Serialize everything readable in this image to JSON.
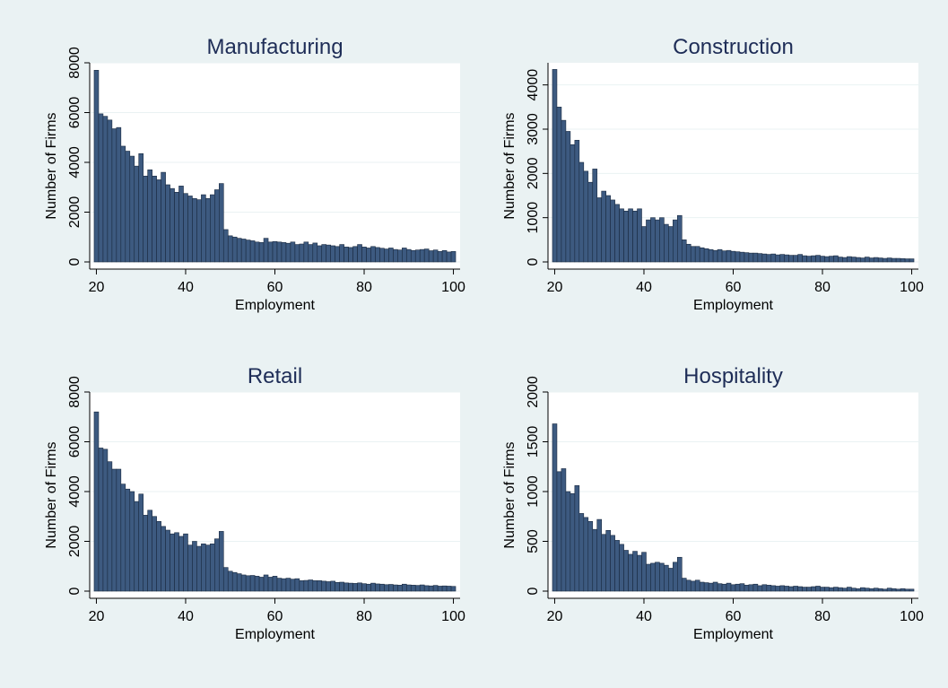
{
  "colors": {
    "background": "#eaf2f3",
    "plot_area": "#ffffff",
    "bar_fill": "#3d5a80",
    "bar_edge": "#1a2a40",
    "title": "#1e2d57"
  },
  "chart_data": [
    {
      "type": "bar",
      "title": "Manufacturing",
      "xlabel": "Employment",
      "ylabel": "Number of Firms",
      "xlim": [
        18.5,
        101.5
      ],
      "ylim": [
        0,
        8000
      ],
      "xticks": [
        20,
        40,
        60,
        80,
        100
      ],
      "yticks": [
        0,
        2000,
        4000,
        6000,
        8000
      ],
      "grid": true,
      "x": [
        20,
        21,
        22,
        23,
        24,
        25,
        26,
        27,
        28,
        29,
        30,
        31,
        32,
        33,
        34,
        35,
        36,
        37,
        38,
        39,
        40,
        41,
        42,
        43,
        44,
        45,
        46,
        47,
        48,
        49,
        50,
        51,
        52,
        53,
        54,
        55,
        56,
        57,
        58,
        59,
        60,
        61,
        62,
        63,
        64,
        65,
        66,
        67,
        68,
        69,
        70,
        71,
        72,
        73,
        74,
        75,
        76,
        77,
        78,
        79,
        80,
        81,
        82,
        83,
        84,
        85,
        86,
        87,
        88,
        89,
        90,
        91,
        92,
        93,
        94,
        95,
        96,
        97,
        98,
        99,
        100
      ],
      "values": [
        7700,
        5950,
        5850,
        5700,
        5350,
        5400,
        4650,
        4450,
        4250,
        3850,
        4350,
        3450,
        3700,
        3450,
        3300,
        3600,
        3100,
        2950,
        2800,
        3050,
        2750,
        2650,
        2550,
        2500,
        2700,
        2550,
        2700,
        2900,
        3150,
        1300,
        1050,
        1000,
        950,
        920,
        880,
        850,
        800,
        780,
        950,
        800,
        820,
        800,
        780,
        750,
        800,
        700,
        720,
        800,
        700,
        760,
        650,
        700,
        680,
        650,
        620,
        700,
        600,
        580,
        620,
        700,
        600,
        560,
        620,
        580,
        550,
        520,
        560,
        500,
        480,
        560,
        500,
        460,
        480,
        500,
        520,
        450,
        480,
        420,
        460,
        400,
        420
      ]
    },
    {
      "type": "bar",
      "title": "Construction",
      "xlabel": "Employment",
      "ylabel": "Number of Firms",
      "xlim": [
        18.5,
        101.5
      ],
      "ylim": [
        0,
        4500
      ],
      "xticks": [
        20,
        40,
        60,
        80,
        100
      ],
      "yticks": [
        0,
        1000,
        2000,
        3000,
        4000
      ],
      "grid": true,
      "x": [
        20,
        21,
        22,
        23,
        24,
        25,
        26,
        27,
        28,
        29,
        30,
        31,
        32,
        33,
        34,
        35,
        36,
        37,
        38,
        39,
        40,
        41,
        42,
        43,
        44,
        45,
        46,
        47,
        48,
        49,
        50,
        51,
        52,
        53,
        54,
        55,
        56,
        57,
        58,
        59,
        60,
        61,
        62,
        63,
        64,
        65,
        66,
        67,
        68,
        69,
        70,
        71,
        72,
        73,
        74,
        75,
        76,
        77,
        78,
        79,
        80,
        81,
        82,
        83,
        84,
        85,
        86,
        87,
        88,
        89,
        90,
        91,
        92,
        93,
        94,
        95,
        96,
        97,
        98,
        99,
        100
      ],
      "values": [
        4350,
        3500,
        3200,
        2950,
        2650,
        2750,
        2250,
        2050,
        1800,
        2100,
        1450,
        1600,
        1500,
        1400,
        1300,
        1200,
        1150,
        1200,
        1150,
        1200,
        800,
        950,
        1000,
        950,
        1000,
        850,
        800,
        950,
        1050,
        500,
        400,
        350,
        350,
        320,
        300,
        280,
        260,
        280,
        250,
        260,
        240,
        230,
        220,
        210,
        200,
        200,
        190,
        180,
        170,
        180,
        160,
        170,
        160,
        150,
        150,
        170,
        140,
        130,
        140,
        150,
        130,
        120,
        130,
        140,
        110,
        100,
        120,
        110,
        100,
        90,
        110,
        90,
        100,
        90,
        80,
        90,
        80,
        80,
        75,
        70,
        70
      ]
    },
    {
      "type": "bar",
      "title": "Retail",
      "xlabel": "Employment",
      "ylabel": "Number of Firms",
      "xlim": [
        18.5,
        101.5
      ],
      "ylim": [
        0,
        8000
      ],
      "xticks": [
        20,
        40,
        60,
        80,
        100
      ],
      "yticks": [
        0,
        2000,
        4000,
        6000,
        8000
      ],
      "grid": true,
      "x": [
        20,
        21,
        22,
        23,
        24,
        25,
        26,
        27,
        28,
        29,
        30,
        31,
        32,
        33,
        34,
        35,
        36,
        37,
        38,
        39,
        40,
        41,
        42,
        43,
        44,
        45,
        46,
        47,
        48,
        49,
        50,
        51,
        52,
        53,
        54,
        55,
        56,
        57,
        58,
        59,
        60,
        61,
        62,
        63,
        64,
        65,
        66,
        67,
        68,
        69,
        70,
        71,
        72,
        73,
        74,
        75,
        76,
        77,
        78,
        79,
        80,
        81,
        82,
        83,
        84,
        85,
        86,
        87,
        88,
        89,
        90,
        91,
        92,
        93,
        94,
        95,
        96,
        97,
        98,
        99,
        100
      ],
      "values": [
        7200,
        5750,
        5700,
        5200,
        4900,
        4900,
        4300,
        4100,
        4000,
        3600,
        3900,
        3050,
        3250,
        3000,
        2800,
        2600,
        2450,
        2300,
        2350,
        2200,
        2300,
        1850,
        2000,
        1800,
        1900,
        1850,
        1900,
        2100,
        2400,
        950,
        800,
        750,
        700,
        650,
        620,
        630,
        600,
        560,
        650,
        560,
        600,
        520,
        500,
        520,
        480,
        500,
        420,
        430,
        450,
        420,
        420,
        400,
        380,
        400,
        350,
        360,
        330,
        320,
        310,
        330,
        300,
        280,
        320,
        290,
        280,
        260,
        270,
        250,
        240,
        280,
        250,
        240,
        230,
        250,
        220,
        210,
        230,
        200,
        210,
        200,
        190
      ]
    },
    {
      "type": "bar",
      "title": "Hospitality",
      "xlabel": "Employment",
      "ylabel": "Number of Firms",
      "xlim": [
        18.5,
        101.5
      ],
      "ylim": [
        0,
        2000
      ],
      "xticks": [
        20,
        40,
        60,
        80,
        100
      ],
      "yticks": [
        0,
        500,
        1000,
        1500,
        2000
      ],
      "grid": true,
      "x": [
        20,
        21,
        22,
        23,
        24,
        25,
        26,
        27,
        28,
        29,
        30,
        31,
        32,
        33,
        34,
        35,
        36,
        37,
        38,
        39,
        40,
        41,
        42,
        43,
        44,
        45,
        46,
        47,
        48,
        49,
        50,
        51,
        52,
        53,
        54,
        55,
        56,
        57,
        58,
        59,
        60,
        61,
        62,
        63,
        64,
        65,
        66,
        67,
        68,
        69,
        70,
        71,
        72,
        73,
        74,
        75,
        76,
        77,
        78,
        79,
        80,
        81,
        82,
        83,
        84,
        85,
        86,
        87,
        88,
        89,
        90,
        91,
        92,
        93,
        94,
        95,
        96,
        97,
        98,
        99,
        100
      ],
      "values": [
        1680,
        1200,
        1230,
        1000,
        980,
        1060,
        780,
        740,
        700,
        620,
        720,
        570,
        610,
        560,
        510,
        470,
        410,
        370,
        400,
        360,
        390,
        270,
        280,
        290,
        280,
        260,
        230,
        290,
        340,
        130,
        110,
        100,
        110,
        90,
        85,
        80,
        90,
        75,
        70,
        80,
        65,
        70,
        75,
        60,
        65,
        70,
        55,
        65,
        60,
        55,
        50,
        55,
        50,
        45,
        50,
        45,
        40,
        40,
        45,
        50,
        40,
        40,
        35,
        40,
        35,
        30,
        40,
        30,
        25,
        35,
        30,
        25,
        30,
        25,
        20,
        30,
        25,
        20,
        25,
        20,
        20
      ]
    }
  ]
}
